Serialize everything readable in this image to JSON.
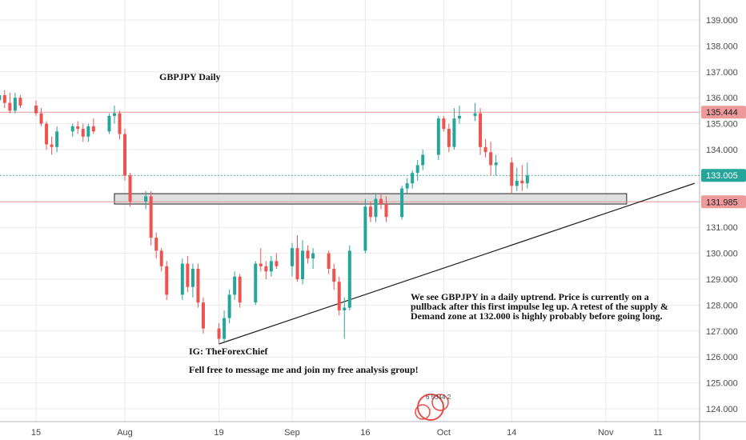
{
  "chart_data": {
    "type": "candlestick",
    "title": "GBPJPY Daily",
    "ylim": [
      123.4,
      139.6
    ],
    "y_ticks": [
      124.0,
      125.0,
      126.0,
      127.0,
      128.0,
      129.0,
      130.0,
      131.0,
      132.0,
      133.0,
      134.0,
      135.0,
      136.0,
      137.0,
      138.0,
      139.0
    ],
    "y_tick_labels": [
      "124.000",
      "125.000",
      "126.000",
      "127.000",
      "128.000",
      "129.000",
      "130.000",
      "131.000",
      "132.000",
      "133.000",
      "134.000",
      "135.000",
      "136.000",
      "137.000",
      "138.000",
      "139.000"
    ],
    "x_tick_labels": [
      {
        "label": "15",
        "date": "2019-07-15"
      },
      {
        "label": "Aug",
        "date": "2019-08-01"
      },
      {
        "label": "19",
        "date": "2019-08-19"
      },
      {
        "label": "Sep",
        "date": "2019-09-02"
      },
      {
        "label": "16",
        "date": "2019-09-16"
      },
      {
        "label": "Oct",
        "date": "2019-10-01"
      },
      {
        "label": "14",
        "date": "2019-10-14"
      },
      {
        "label": "Nov",
        "date": "2019-11-01"
      },
      {
        "label": "11",
        "date": "2019-11-11"
      }
    ],
    "candles": [
      {
        "date": "2019-07-08",
        "o": 135.9,
        "h": 136.3,
        "l": 135.6,
        "c": 136.1
      },
      {
        "date": "2019-07-09",
        "o": 136.1,
        "h": 136.3,
        "l": 135.6,
        "c": 135.8
      },
      {
        "date": "2019-07-10",
        "o": 135.8,
        "h": 136.2,
        "l": 135.4,
        "c": 135.5
      },
      {
        "date": "2019-07-11",
        "o": 135.5,
        "h": 136.2,
        "l": 135.4,
        "c": 136.0
      },
      {
        "date": "2019-07-12",
        "o": 136.0,
        "h": 136.1,
        "l": 135.6,
        "c": 135.7
      },
      {
        "date": "2019-07-15",
        "o": 135.7,
        "h": 135.9,
        "l": 135.3,
        "c": 135.4
      },
      {
        "date": "2019-07-16",
        "o": 135.4,
        "h": 135.6,
        "l": 134.9,
        "c": 135.0
      },
      {
        "date": "2019-07-17",
        "o": 135.0,
        "h": 135.1,
        "l": 134.0,
        "c": 134.2
      },
      {
        "date": "2019-07-18",
        "o": 134.2,
        "h": 134.5,
        "l": 133.8,
        "c": 134.1
      },
      {
        "date": "2019-07-19",
        "o": 134.1,
        "h": 134.9,
        "l": 133.9,
        "c": 134.7
      },
      {
        "date": "2019-07-22",
        "o": 134.7,
        "h": 135.0,
        "l": 134.5,
        "c": 134.9
      },
      {
        "date": "2019-07-23",
        "o": 134.9,
        "h": 135.1,
        "l": 134.6,
        "c": 134.8
      },
      {
        "date": "2019-07-24",
        "o": 134.8,
        "h": 135.0,
        "l": 134.3,
        "c": 134.5
      },
      {
        "date": "2019-07-25",
        "o": 134.5,
        "h": 135.0,
        "l": 134.3,
        "c": 134.9
      },
      {
        "date": "2019-07-26",
        "o": 134.9,
        "h": 135.2,
        "l": 134.6,
        "c": 134.7
      },
      {
        "date": "2019-07-29",
        "o": 134.7,
        "h": 135.4,
        "l": 134.6,
        "c": 135.3
      },
      {
        "date": "2019-07-30",
        "o": 135.3,
        "h": 135.7,
        "l": 135.0,
        "c": 135.4
      },
      {
        "date": "2019-07-31",
        "o": 135.4,
        "h": 135.5,
        "l": 134.4,
        "c": 134.6
      },
      {
        "date": "2019-08-01",
        "o": 134.6,
        "h": 134.8,
        "l": 132.8,
        "c": 133.0
      },
      {
        "date": "2019-08-02",
        "o": 133.0,
        "h": 133.1,
        "l": 131.8,
        "c": 132.0
      },
      {
        "date": "2019-08-05",
        "o": 132.0,
        "h": 132.4,
        "l": 131.7,
        "c": 132.2
      },
      {
        "date": "2019-08-06",
        "o": 132.2,
        "h": 132.4,
        "l": 130.3,
        "c": 130.6
      },
      {
        "date": "2019-08-07",
        "o": 130.6,
        "h": 130.8,
        "l": 129.8,
        "c": 130.1
      },
      {
        "date": "2019-08-08",
        "o": 130.1,
        "h": 130.2,
        "l": 129.3,
        "c": 129.5
      },
      {
        "date": "2019-08-09",
        "o": 129.5,
        "h": 129.7,
        "l": 128.2,
        "c": 128.4
      },
      {
        "date": "2019-08-12",
        "o": 128.4,
        "h": 129.8,
        "l": 128.2,
        "c": 129.6
      },
      {
        "date": "2019-08-13",
        "o": 129.6,
        "h": 129.9,
        "l": 128.5,
        "c": 128.7
      },
      {
        "date": "2019-08-14",
        "o": 128.7,
        "h": 129.6,
        "l": 128.3,
        "c": 129.4
      },
      {
        "date": "2019-08-15",
        "o": 129.4,
        "h": 129.6,
        "l": 127.9,
        "c": 128.1
      },
      {
        "date": "2019-08-16",
        "o": 128.1,
        "h": 128.3,
        "l": 126.9,
        "c": 127.1
      },
      {
        "date": "2019-08-19",
        "o": 127.1,
        "h": 127.3,
        "l": 126.5,
        "c": 126.7
      },
      {
        "date": "2019-08-20",
        "o": 126.7,
        "h": 127.8,
        "l": 126.6,
        "c": 127.5
      },
      {
        "date": "2019-08-21",
        "o": 127.5,
        "h": 128.6,
        "l": 127.3,
        "c": 128.4
      },
      {
        "date": "2019-08-22",
        "o": 128.4,
        "h": 129.3,
        "l": 128.2,
        "c": 129.1
      },
      {
        "date": "2019-08-23",
        "o": 129.1,
        "h": 129.2,
        "l": 127.9,
        "c": 128.1
      },
      {
        "date": "2019-08-26",
        "o": 128.1,
        "h": 129.7,
        "l": 128.0,
        "c": 129.6
      },
      {
        "date": "2019-08-27",
        "o": 129.6,
        "h": 130.2,
        "l": 129.3,
        "c": 129.5
      },
      {
        "date": "2019-08-28",
        "o": 129.5,
        "h": 129.7,
        "l": 129.0,
        "c": 129.3
      },
      {
        "date": "2019-08-29",
        "o": 129.3,
        "h": 129.9,
        "l": 129.1,
        "c": 129.7
      },
      {
        "date": "2019-08-30",
        "o": 129.7,
        "h": 130.0,
        "l": 129.4,
        "c": 129.5
      },
      {
        "date": "2019-09-02",
        "o": 129.5,
        "h": 130.4,
        "l": 129.1,
        "c": 130.2
      },
      {
        "date": "2019-09-03",
        "o": 130.2,
        "h": 130.7,
        "l": 128.9,
        "c": 129.0
      },
      {
        "date": "2019-09-04",
        "o": 129.0,
        "h": 130.5,
        "l": 128.8,
        "c": 130.1
      },
      {
        "date": "2019-09-05",
        "o": 130.1,
        "h": 130.3,
        "l": 129.6,
        "c": 129.8
      },
      {
        "date": "2019-09-06",
        "o": 129.8,
        "h": 130.2,
        "l": 129.4,
        "c": 130.0
      },
      {
        "date": "2019-09-09",
        "o": 130.0,
        "h": 130.1,
        "l": 129.2,
        "c": 129.4
      },
      {
        "date": "2019-09-10",
        "o": 129.4,
        "h": 129.6,
        "l": 128.6,
        "c": 128.9
      },
      {
        "date": "2019-09-11",
        "o": 128.9,
        "h": 129.1,
        "l": 127.6,
        "c": 127.8
      },
      {
        "date": "2019-09-12",
        "o": 127.8,
        "h": 128.3,
        "l": 126.7,
        "c": 127.9
      },
      {
        "date": "2019-09-13",
        "o": 127.9,
        "h": 130.3,
        "l": 127.8,
        "c": 130.1
      },
      {
        "date": "2019-09-16",
        "o": 130.1,
        "h": 132.1,
        "l": 130.0,
        "c": 131.8
      },
      {
        "date": "2019-09-17",
        "o": 131.8,
        "h": 132.0,
        "l": 131.2,
        "c": 131.4
      },
      {
        "date": "2019-09-18",
        "o": 131.4,
        "h": 132.3,
        "l": 131.2,
        "c": 132.1
      },
      {
        "date": "2019-09-19",
        "o": 132.1,
        "h": 132.3,
        "l": 131.7,
        "c": 131.9
      },
      {
        "date": "2019-09-20",
        "o": 131.9,
        "h": 132.2,
        "l": 131.2,
        "c": 131.4
      },
      {
        "date": "2019-09-23",
        "o": 131.4,
        "h": 132.6,
        "l": 131.3,
        "c": 132.5
      },
      {
        "date": "2019-09-24",
        "o": 132.5,
        "h": 132.9,
        "l": 132.3,
        "c": 132.7
      },
      {
        "date": "2019-09-25",
        "o": 132.7,
        "h": 133.2,
        "l": 132.5,
        "c": 133.1
      },
      {
        "date": "2019-09-26",
        "o": 133.1,
        "h": 133.6,
        "l": 132.8,
        "c": 133.4
      },
      {
        "date": "2019-09-27",
        "o": 133.4,
        "h": 134.0,
        "l": 133.2,
        "c": 133.8
      },
      {
        "date": "2019-09-30",
        "o": 133.8,
        "h": 135.3,
        "l": 133.6,
        "c": 135.2
      },
      {
        "date": "2019-10-01",
        "o": 135.2,
        "h": 135.3,
        "l": 134.7,
        "c": 134.8
      },
      {
        "date": "2019-10-02",
        "o": 134.8,
        "h": 135.0,
        "l": 133.9,
        "c": 134.1
      },
      {
        "date": "2019-10-03",
        "o": 134.1,
        "h": 135.6,
        "l": 134.0,
        "c": 135.2
      },
      {
        "date": "2019-10-04",
        "o": 135.2,
        "h": 135.7,
        "l": 135.0,
        "c": 135.3
      },
      {
        "date": "2019-10-07",
        "o": 135.3,
        "h": 135.8,
        "l": 135.1,
        "c": 135.4
      },
      {
        "date": "2019-10-08",
        "o": 135.4,
        "h": 135.6,
        "l": 133.8,
        "c": 134.1
      },
      {
        "date": "2019-10-09",
        "o": 134.1,
        "h": 134.4,
        "l": 133.7,
        "c": 133.9
      },
      {
        "date": "2019-10-10",
        "o": 133.9,
        "h": 134.3,
        "l": 133.0,
        "c": 133.4
      },
      {
        "date": "2019-10-11",
        "o": 133.4,
        "h": 133.8,
        "l": 133.0,
        "c": 133.5
      },
      {
        "date": "2019-10-14",
        "o": 133.5,
        "h": 133.7,
        "l": 132.3,
        "c": 132.6
      },
      {
        "date": "2019-10-15",
        "o": 132.6,
        "h": 133.3,
        "l": 132.4,
        "c": 132.8
      },
      {
        "date": "2019-10-16",
        "o": 132.8,
        "h": 133.4,
        "l": 132.4,
        "c": 132.7
      },
      {
        "date": "2019-10-17",
        "o": 132.7,
        "h": 133.5,
        "l": 132.5,
        "c": 133.0
      }
    ],
    "horizontal_lines": [
      {
        "price": 135.444,
        "label": "135.444",
        "color": "#ef9a9a",
        "style": "solid"
      },
      {
        "price": 133.005,
        "label": "133.005",
        "color": "#26a69a",
        "style": "dotted"
      },
      {
        "price": 131.985,
        "label": "131.985",
        "color": "#ef9a9a",
        "style": "solid"
      }
    ],
    "zone": {
      "date_from": "2019-07-30",
      "date_to": "2019-11-05",
      "price_top": 132.3,
      "price_bottom": 131.9
    },
    "trendline": {
      "date_from": "2019-08-19",
      "price_from": 126.5,
      "date_to": "2019-11-18",
      "price_to": 132.7
    },
    "annotations": {
      "title": "GBPJPY Daily",
      "commentary": [
        "We see GBPJPY in a daily uptrend. Price is currently on a",
        "pullback after this first impulse leg up. A retest of the supply &",
        "Demand zone at 132.000 is highly probably before going long."
      ],
      "handle": "IG: TheForexChief",
      "cta": "Fell free to message me and join my free analysis group!"
    },
    "watermark": {
      "digits": "6 5344 2"
    },
    "colors": {
      "up": "#26a69a",
      "down": "#ef5350",
      "grid": "#e9e9e9",
      "axis": "#b2b5be"
    }
  }
}
